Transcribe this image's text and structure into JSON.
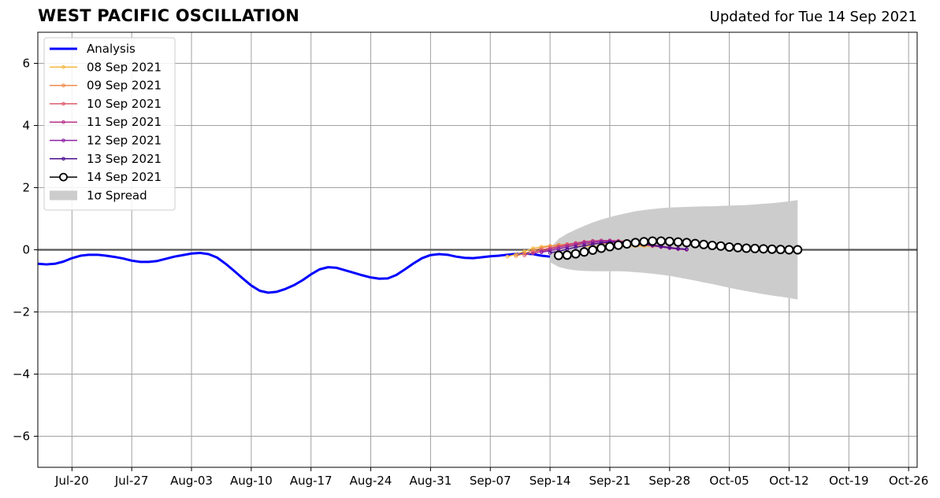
{
  "header": {
    "title": "WEST PACIFIC OSCILLATION",
    "updated": "Updated for Tue 14 Sep 2021"
  },
  "chart_data": {
    "type": "line",
    "title": "WEST PACIFIC OSCILLATION",
    "xlabel": "",
    "ylabel": "",
    "xlim": [
      "2021-07-16",
      "2021-10-27"
    ],
    "ylim": [
      -7,
      7
    ],
    "x_ticks": [
      "Jul-20",
      "Jul-27",
      "Aug-03",
      "Aug-10",
      "Aug-17",
      "Aug-24",
      "Aug-31",
      "Sep-07",
      "Sep-14",
      "Sep-21",
      "Sep-28",
      "Oct-05",
      "Oct-12",
      "Oct-19",
      "Oct-26"
    ],
    "y_ticks": [
      6,
      4,
      2,
      0,
      -2,
      -4,
      -6
    ],
    "y_tick_labels": [
      "6",
      "4",
      "2",
      "0",
      "−2",
      "−4",
      "−6"
    ],
    "grid": true,
    "legend_position": "upper-left",
    "colors": {
      "analysis": "#0000ff",
      "08 Sep 2021": "#f5b841",
      "09 Sep 2021": "#ef8a47",
      "10 Sep 2021": "#de5a6b",
      "11 Sep 2021": "#b83289",
      "12 Sep 2021": "#8b1fa3",
      "13 Sep 2021": "#4b0c8f",
      "14 Sep 2021": "#000000",
      "spread": "#cccccc"
    },
    "legend": [
      "Analysis",
      "08 Sep 2021",
      "09 Sep 2021",
      "10 Sep 2021",
      "11 Sep 2021",
      "12 Sep 2021",
      "13 Sep 2021",
      "14 Sep 2021",
      "1σ Spread"
    ],
    "analysis": {
      "name": "Analysis",
      "x_start": "2021-07-16",
      "x_end": "2021-09-14",
      "values": [
        -0.45,
        -0.47,
        -0.45,
        -0.38,
        -0.27,
        -0.19,
        -0.16,
        -0.16,
        -0.19,
        -0.23,
        -0.28,
        -0.35,
        -0.39,
        -0.39,
        -0.36,
        -0.29,
        -0.22,
        -0.17,
        -0.12,
        -0.1,
        -0.14,
        -0.25,
        -0.45,
        -0.68,
        -0.92,
        -1.15,
        -1.32,
        -1.38,
        -1.35,
        -1.26,
        -1.14,
        -0.98,
        -0.79,
        -0.63,
        -0.56,
        -0.58,
        -0.66,
        -0.74,
        -0.82,
        -0.89,
        -0.93,
        -0.92,
        -0.81,
        -0.63,
        -0.44,
        -0.27,
        -0.17,
        -0.14,
        -0.16,
        -0.22,
        -0.26,
        -0.27,
        -0.24,
        -0.21,
        -0.19,
        -0.16,
        -0.13,
        -0.12,
        -0.14,
        -0.19,
        -0.22
      ]
    },
    "spread": {
      "x_start": "2021-09-14",
      "upper": [
        0.05,
        0.35,
        0.52,
        0.65,
        0.77,
        0.88,
        0.97,
        1.05,
        1.12,
        1.18,
        1.24,
        1.28,
        1.31,
        1.34,
        1.36,
        1.37,
        1.38,
        1.39,
        1.4,
        1.4,
        1.41,
        1.42,
        1.43,
        1.44,
        1.46,
        1.48,
        1.5,
        1.53,
        1.56,
        1.6
      ],
      "lower": [
        -0.4,
        -0.55,
        -0.62,
        -0.66,
        -0.68,
        -0.69,
        -0.69,
        -0.69,
        -0.69,
        -0.7,
        -0.72,
        -0.74,
        -0.77,
        -0.8,
        -0.84,
        -0.89,
        -0.94,
        -0.99,
        -1.05,
        -1.1,
        -1.16,
        -1.22,
        -1.28,
        -1.33,
        -1.38,
        -1.43,
        -1.47,
        -1.51,
        -1.55,
        -1.6
      ]
    },
    "series": [
      {
        "name": "08 Sep 2021",
        "x_start": "2021-09-09",
        "values": [
          -0.22,
          -0.15,
          -0.05,
          0.05,
          0.1,
          0.13,
          0.14,
          0.14,
          0.13,
          0.12,
          0.11,
          0.1,
          0.1,
          0.1,
          0.11,
          0.12,
          0.12,
          0.11,
          0.09,
          0.06,
          0.03,
          0.0
        ]
      },
      {
        "name": "09 Sep 2021",
        "x_start": "2021-09-10",
        "values": [
          -0.2,
          -0.12,
          -0.02,
          0.06,
          0.12,
          0.16,
          0.18,
          0.19,
          0.2,
          0.2,
          0.2,
          0.2,
          0.19,
          0.18,
          0.16,
          0.14,
          0.12,
          0.1,
          0.07,
          0.04,
          0.01
        ]
      },
      {
        "name": "10 Sep 2021",
        "x_start": "2021-09-11",
        "values": [
          -0.18,
          -0.08,
          0.0,
          0.06,
          0.12,
          0.18,
          0.22,
          0.26,
          0.29,
          0.3,
          0.3,
          0.29,
          0.27,
          0.24,
          0.2,
          0.16,
          0.12,
          0.08,
          0.04,
          0.01
        ]
      },
      {
        "name": "11 Sep 2021",
        "x_start": "2021-09-12",
        "values": [
          -0.12,
          -0.05,
          0.02,
          0.08,
          0.14,
          0.2,
          0.25,
          0.28,
          0.3,
          0.3,
          0.28,
          0.25,
          0.21,
          0.17,
          0.13,
          0.09,
          0.05,
          0.02,
          0.0
        ]
      },
      {
        "name": "12 Sep 2021",
        "x_start": "2021-09-13",
        "values": [
          -0.08,
          -0.03,
          0.03,
          0.09,
          0.15,
          0.2,
          0.24,
          0.26,
          0.27,
          0.26,
          0.24,
          0.21,
          0.17,
          0.13,
          0.09,
          0.06,
          0.03,
          0.01
        ]
      },
      {
        "name": "13 Sep 2021",
        "x_start": "2021-09-14",
        "values": [
          -0.1,
          -0.05,
          0.02,
          0.08,
          0.13,
          0.18,
          0.22,
          0.24,
          0.25,
          0.24,
          0.22,
          0.19,
          0.15,
          0.11,
          0.07,
          0.04,
          0.02
        ]
      },
      {
        "name": "14 Sep 2021",
        "x_start": "2021-09-15",
        "values": [
          -0.18,
          -0.17,
          -0.13,
          -0.07,
          -0.01,
          0.05,
          0.1,
          0.15,
          0.19,
          0.23,
          0.26,
          0.28,
          0.28,
          0.27,
          0.25,
          0.23,
          0.2,
          0.17,
          0.14,
          0.12,
          0.09,
          0.07,
          0.05,
          0.04,
          0.03,
          0.02,
          0.01,
          0.0,
          0.0
        ]
      }
    ]
  }
}
